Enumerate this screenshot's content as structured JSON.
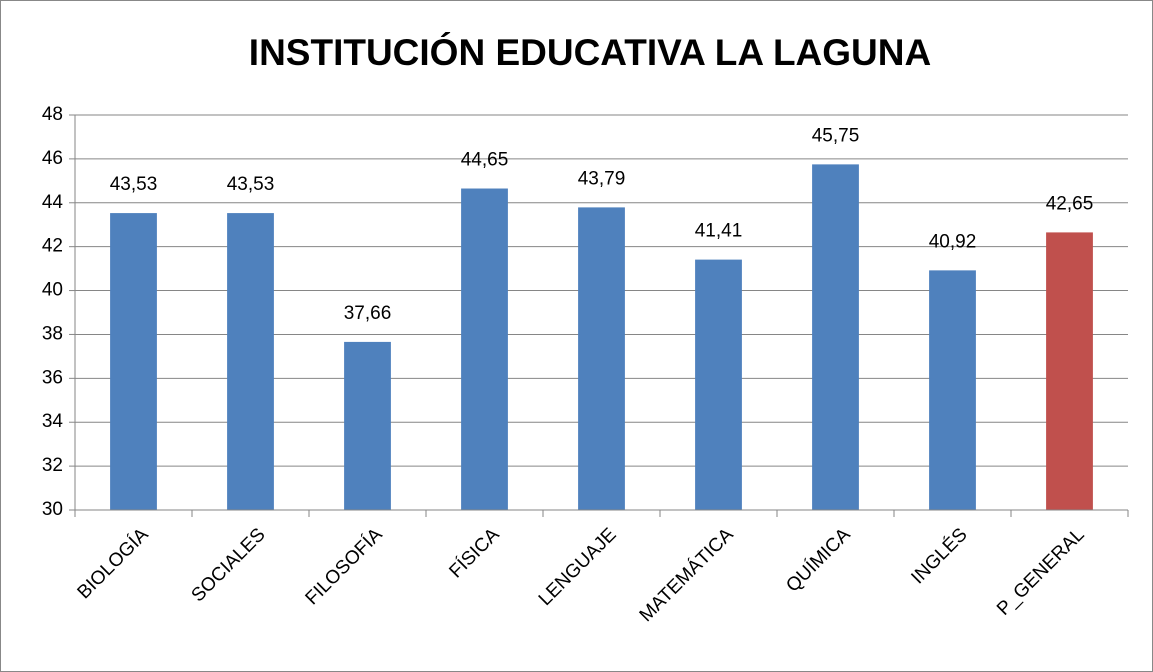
{
  "chart_data": {
    "type": "bar",
    "title": "INSTITUCIÓN EDUCATIVA LA LAGUNA",
    "categories": [
      "BIOLOGÍA",
      "SOCIALES",
      "FILOSOFÍA",
      "FÍSICA",
      "LENGUAJE",
      "MATEMÁTICA",
      "QUÍMICA",
      "INGLÉS",
      "P_GENERAL"
    ],
    "values": [
      43.53,
      43.53,
      37.66,
      44.65,
      43.79,
      41.41,
      45.75,
      40.92,
      42.65
    ],
    "value_labels": [
      "43,53",
      "43,53",
      "37,66",
      "44,65",
      "43,79",
      "41,41",
      "45,75",
      "40,92",
      "42,65"
    ],
    "colors": [
      "#4f81bd",
      "#4f81bd",
      "#4f81bd",
      "#4f81bd",
      "#4f81bd",
      "#4f81bd",
      "#4f81bd",
      "#4f81bd",
      "#c0504d"
    ],
    "ylim": [
      30,
      48
    ],
    "yticks": [
      30,
      32,
      34,
      36,
      38,
      40,
      42,
      44,
      46,
      48
    ],
    "grid": true
  }
}
